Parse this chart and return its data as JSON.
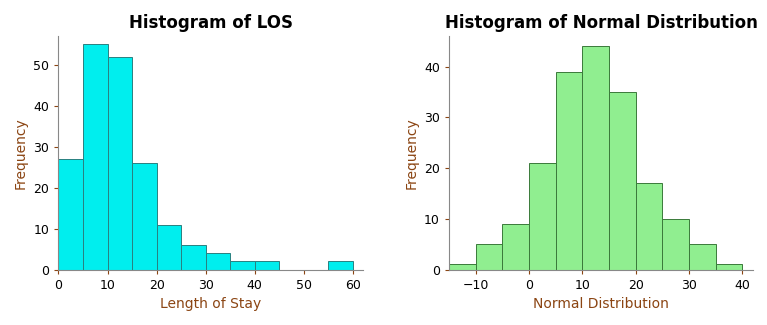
{
  "left_title": "Histogram of LOS",
  "right_title": "Histogram of Normal Distribution",
  "left_xlabel": "Length of Stay",
  "right_xlabel": "Normal Distribution",
  "ylabel": "Frequency",
  "left_color": "#00EEEE",
  "left_edgecolor": "#2a8080",
  "right_color": "#90EE90",
  "right_edgecolor": "#3a7a3a",
  "left_bins_left": [
    0,
    5,
    10,
    15,
    20,
    25,
    30,
    35,
    40,
    45,
    50,
    55
  ],
  "left_bins_right": [
    5,
    10,
    15,
    20,
    25,
    30,
    35,
    40,
    45,
    50,
    55,
    60
  ],
  "left_heights": [
    27,
    55,
    52,
    26,
    11,
    6,
    4,
    2,
    2,
    0,
    0,
    2
  ],
  "left_xlim": [
    0,
    62
  ],
  "left_ylim": [
    0,
    57
  ],
  "left_xticks": [
    0,
    10,
    20,
    30,
    40,
    50,
    60
  ],
  "left_yticks": [
    0,
    10,
    20,
    30,
    40,
    50
  ],
  "right_bins_left": [
    -15,
    -10,
    -5,
    0,
    5,
    10,
    15,
    20,
    25,
    30,
    35
  ],
  "right_bins_right": [
    -10,
    -5,
    0,
    5,
    10,
    15,
    20,
    25,
    30,
    35,
    40
  ],
  "right_heights": [
    1,
    5,
    9,
    21,
    39,
    44,
    35,
    17,
    10,
    5,
    1
  ],
  "right_xlim": [
    -15,
    42
  ],
  "right_ylim": [
    0,
    46
  ],
  "right_xticks": [
    -10,
    0,
    10,
    20,
    30,
    40
  ],
  "right_yticks": [
    0,
    10,
    20,
    30,
    40
  ],
  "title_fontsize": 12,
  "label_fontsize": 10,
  "tick_fontsize": 9,
  "axis_label_color": "#8B4513",
  "tick_color": "#8B4513",
  "spine_color": "#888888",
  "background_color": "#ffffff"
}
